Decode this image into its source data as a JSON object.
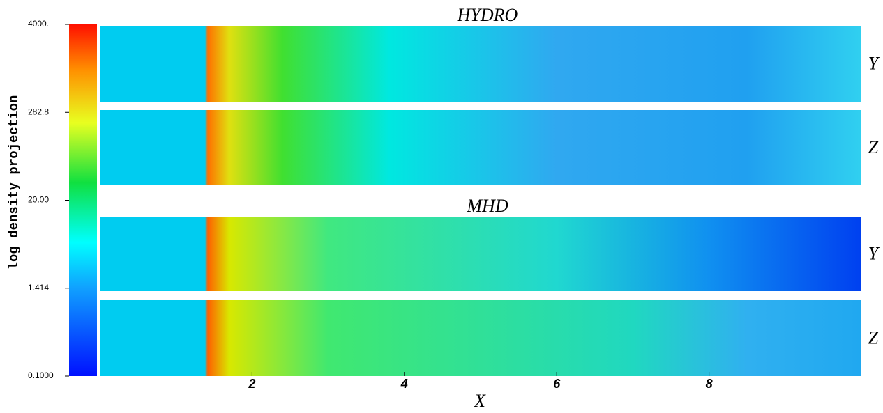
{
  "chart_data": {
    "type": "heatmap",
    "groups": [
      {
        "title": "HYDRO",
        "panels": [
          "Y",
          "Z"
        ]
      },
      {
        "title": "MHD",
        "panels": [
          "Y",
          "Z"
        ]
      }
    ],
    "x_label": "X",
    "xlim": [
      0,
      10
    ],
    "xticks": [
      2,
      4,
      6,
      8
    ],
    "colorbar": {
      "label": "log density projection",
      "log": true,
      "lim": [
        0.1,
        4000
      ],
      "ticks": [
        {
          "value": 0.1,
          "label": "0.1000"
        },
        {
          "value": 1.414,
          "label": "1.414"
        },
        {
          "value": 20,
          "label": "20.00"
        },
        {
          "value": 282.8,
          "label": "282.8"
        },
        {
          "value": 4000,
          "label": "4000."
        }
      ]
    }
  }
}
